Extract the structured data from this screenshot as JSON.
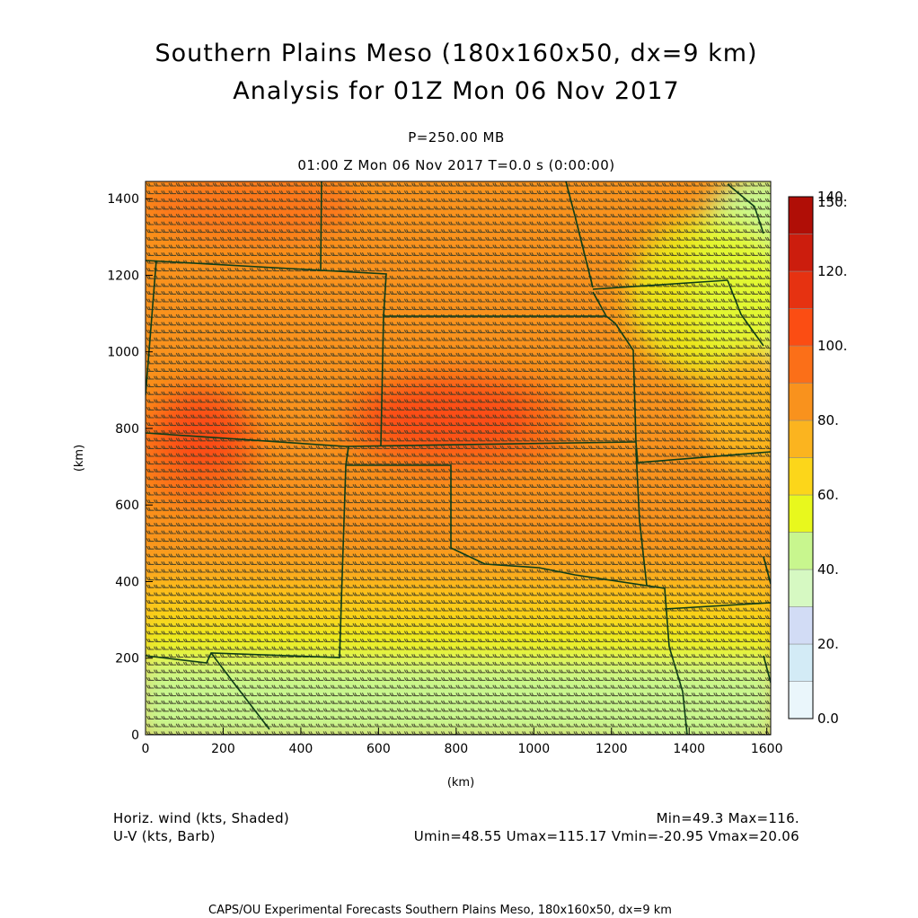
{
  "header": {
    "title_line1": "Southern Plains Meso (180x160x50, dx=9 km)",
    "title_line2": "Analysis for 01Z Mon 06 Nov 2017",
    "level": "P=250.00 MB",
    "valid_time": "01:00 Z Mon 06 Nov 2017    T=0.0 s (0:00:00)"
  },
  "axes": {
    "xlabel": "(km)",
    "ylabel": "(km)",
    "x_range": [
      0,
      1600
    ],
    "y_range": [
      0,
      1440
    ],
    "x_ticks": [
      "0",
      "200",
      "400",
      "600",
      "800",
      "1000",
      "1200",
      "1400",
      "1600"
    ],
    "y_ticks": [
      "0",
      "200",
      "400",
      "600",
      "800",
      "1000",
      "1200",
      "1400"
    ]
  },
  "colorbar": {
    "labels": [
      "0.0",
      "20.",
      "40.",
      "60.",
      "80.",
      "100.",
      "120.",
      "140.",
      "150."
    ],
    "colors": [
      "#eaf6fb",
      "#d3ebf6",
      "#d2dcf5",
      "#d6f9c2",
      "#c8f68e",
      "#e8f81d",
      "#fcd61a",
      "#fbb41f",
      "#f9921d",
      "#fb6f18",
      "#fb4d13",
      "#e63211",
      "#cc1d0d",
      "#b00e06"
    ]
  },
  "footer": {
    "field1": "Horiz. wind (kts, Shaded)",
    "field2": "U-V (kts, Barb)",
    "minmax": "Min=49.3 Max=116.",
    "uv_stats": "Umin=48.55 Umax=115.17 Vmin=-20.95 Vmax=20.06",
    "credit": "CAPS/OU Experimental Forecasts  Southern Plains Meso, 180x160x50, dx=9 km"
  },
  "colors": {
    "boundary": "#0f3d18",
    "barb": "#3a3a26"
  }
}
